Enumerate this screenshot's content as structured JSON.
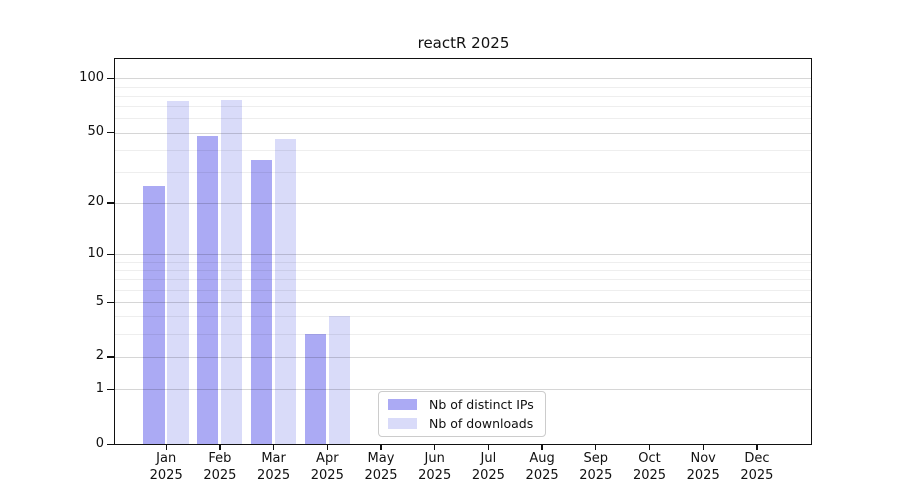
{
  "chart_data": {
    "type": "bar",
    "title": "reactR 2025",
    "categories": [
      "Jan 2025",
      "Feb 2025",
      "Mar 2025",
      "Apr 2025",
      "May 2025",
      "Jun 2025",
      "Jul 2025",
      "Aug 2025",
      "Sep 2025",
      "Oct 2025",
      "Nov 2025",
      "Dec 2025"
    ],
    "series": [
      {
        "name": "Nb of distinct IPs",
        "color": "#abaaf4",
        "values": [
          25,
          48,
          35,
          3,
          0,
          0,
          0,
          0,
          0,
          0,
          0,
          0
        ]
      },
      {
        "name": "Nb of downloads",
        "color": "#d9dbf9",
        "values": [
          75,
          76,
          46,
          4,
          0,
          0,
          0,
          0,
          0,
          0,
          0,
          0
        ]
      }
    ],
    "xlabel": "",
    "ylabel": "",
    "yscale": "log1p",
    "ylim": [
      0,
      128
    ],
    "yticks": [
      0,
      1,
      2,
      5,
      10,
      20,
      50,
      100
    ],
    "minor_yticks": [
      3,
      4,
      6,
      7,
      8,
      9,
      30,
      40,
      60,
      70,
      80,
      90
    ],
    "grid": "horizontal",
    "legend_position": "inside-bottom-center"
  }
}
